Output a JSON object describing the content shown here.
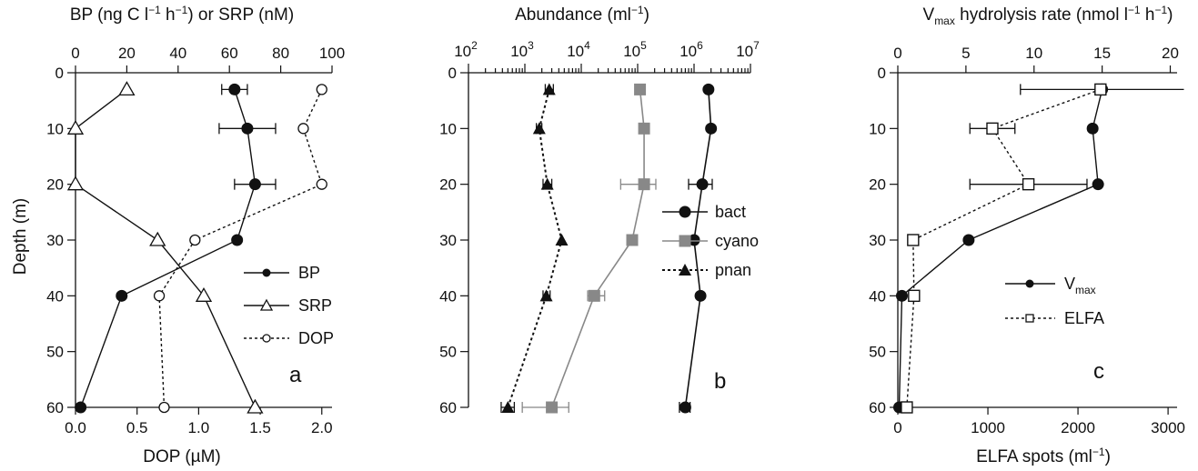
{
  "chart_data": [
    {
      "panel": "a",
      "type": "line",
      "ylabel": "Depth (m)",
      "ylim": [
        60,
        0
      ],
      "y_ticks": [
        0,
        10,
        20,
        30,
        40,
        50,
        60
      ],
      "x_top_label": "BP (ng C l⁻¹ h⁻¹) or SRP (nM)",
      "x_top_lim": [
        0,
        100
      ],
      "x_top_ticks": [
        0,
        20,
        40,
        60,
        80,
        100
      ],
      "x_bottom_label": "DOP (µM)",
      "x_bottom_lim": [
        0.0,
        2.083
      ],
      "x_bottom_ticks": [
        "0.0",
        "0.5",
        "1.0",
        "1.5",
        "2.0"
      ],
      "legend_position": "lower-right",
      "series": [
        {
          "name": "BP",
          "axis": "top",
          "marker": "filled-circle",
          "line": "solid",
          "depth": [
            3,
            10,
            20,
            30,
            40,
            60
          ],
          "values": [
            62,
            67,
            70,
            63,
            18,
            2
          ],
          "error": [
            5,
            11,
            8,
            0,
            0,
            0
          ]
        },
        {
          "name": "SRP",
          "axis": "top",
          "marker": "open-triangle",
          "line": "solid",
          "depth": [
            3,
            10,
            20,
            30,
            40,
            60
          ],
          "values": [
            20,
            0,
            0,
            32,
            50,
            70
          ]
        },
        {
          "name": "DOP",
          "axis": "bottom",
          "marker": "open-circle",
          "line": "dotted",
          "depth": [
            3,
            10,
            20,
            30,
            40,
            60
          ],
          "values": [
            2.0,
            1.85,
            2.0,
            0.97,
            0.68,
            0.72
          ]
        }
      ],
      "annotation": "a"
    },
    {
      "panel": "b",
      "type": "line",
      "ylim": [
        60,
        0
      ],
      "y_ticks": [
        0,
        10,
        20,
        30,
        40,
        50,
        60
      ],
      "x_top_label": "Abundance (ml⁻¹)",
      "x_scale": "log",
      "x_lim_exp": [
        2,
        7
      ],
      "x_tick_exponents": [
        2,
        3,
        4,
        5,
        6,
        7
      ],
      "legend_position": "middle-right",
      "series": [
        {
          "name": "bact",
          "color": "#111111",
          "marker": "filled-circle",
          "depth": [
            3,
            10,
            20,
            30,
            40,
            60
          ],
          "values": [
            1800000,
            2000000,
            1400000,
            1000000,
            1300000,
            700000
          ],
          "err_lo": [
            0,
            0,
            800000,
            0,
            0,
            550000
          ],
          "err_hi": [
            0,
            0,
            2100000,
            0,
            0,
            850000
          ]
        },
        {
          "name": "cyano",
          "color": "#888888",
          "marker": "filled-square",
          "depth": [
            3,
            10,
            20,
            30,
            40,
            60
          ],
          "values": [
            110000,
            130000,
            130000,
            80000,
            17000,
            3000
          ],
          "err_lo": [
            0,
            0,
            50000,
            0,
            13000,
            900
          ],
          "err_hi": [
            0,
            0,
            210000,
            0,
            26000,
            6000
          ]
        },
        {
          "name": "pnan",
          "color": "#111111",
          "marker": "filled-triangle",
          "depth": [
            3,
            10,
            20,
            30,
            40,
            60
          ],
          "values": [
            2700,
            1800,
            2500,
            4500,
            2400,
            500
          ],
          "err_lo": [
            2300,
            1600,
            2100,
            0,
            2100,
            380
          ],
          "err_hi": [
            3200,
            2000,
            3000,
            0,
            2800,
            650
          ]
        }
      ],
      "annotation": "b"
    },
    {
      "panel": "c",
      "type": "line",
      "ylim": [
        60,
        0
      ],
      "y_ticks": [
        0,
        10,
        20,
        30,
        40,
        50,
        60
      ],
      "x_top_label": "Vmax hydrolysis rate (nmol l⁻¹ h⁻¹)",
      "x_top_lim": [
        0,
        20.5
      ],
      "x_top_ticks": [
        0,
        5,
        10,
        15,
        20
      ],
      "x_bottom_label": "ELFA spots (ml⁻¹)",
      "x_bottom_lim": [
        0,
        3100
      ],
      "x_bottom_ticks": [
        0,
        1000,
        2000,
        3000
      ],
      "legend_position": "lower-right",
      "series": [
        {
          "name": "Vmax",
          "axis": "top",
          "marker": "filled-circle",
          "line": "solid",
          "depth": [
            3,
            10,
            20,
            30,
            40,
            60
          ],
          "values": [
            15,
            14.3,
            14.7,
            5.2,
            0.3,
            0.1
          ],
          "error": [
            6,
            0,
            0,
            0,
            0,
            0
          ]
        },
        {
          "name": "ELFA",
          "axis": "bottom",
          "marker": "open-square",
          "line": "dotted",
          "depth": [
            3,
            10,
            20,
            30,
            40,
            60
          ],
          "values": [
            2250,
            1050,
            1450,
            170,
            180,
            100
          ],
          "error": [
            0,
            250,
            650,
            0,
            0,
            0
          ]
        }
      ],
      "annotation": "c"
    }
  ],
  "labels": {
    "a_top": "BP (ng C l⁻¹ h⁻¹) or SRP (nM)",
    "a_bottom": "DOP (µM)",
    "a_ylabel": "Depth (m)",
    "b_top": "Abundance (ml⁻¹)",
    "c_top": "Vmax hydrolysis rate (nmol l⁻¹ h⁻¹)",
    "c_bottom": "ELFA spots (ml⁻¹)",
    "a_letter": "a",
    "b_letter": "b",
    "c_letter": "c",
    "leg_bp": "BP",
    "leg_srp": "SRP",
    "leg_dop": "DOP",
    "leg_bact": "bact",
    "leg_cyano": "cyano",
    "leg_pnan": "pnan",
    "leg_vmax": "V",
    "leg_vmax_sub": "max",
    "leg_elfa": "ELFA",
    "c_top_v": "V",
    "c_top_sub": "max",
    "c_top_rest": " hydrolysis rate (nmol l",
    "c_top_sup1": "−1",
    "c_top_h": " h",
    "c_top_sup2": "−1",
    "c_top_end": ")",
    "a_top_start": "BP (ng C l",
    "a_top_sup1": "−1",
    "a_top_h": " h",
    "a_top_sup2": "−1",
    "a_top_end": ") or SRP (nM)",
    "b_top_start": "Abundance (ml",
    "b_top_sup": "−1",
    "b_top_end": ")",
    "c_bottom_start": "ELFA spots (ml",
    "c_bottom_sup": "−1",
    "c_bottom_end": ")"
  }
}
